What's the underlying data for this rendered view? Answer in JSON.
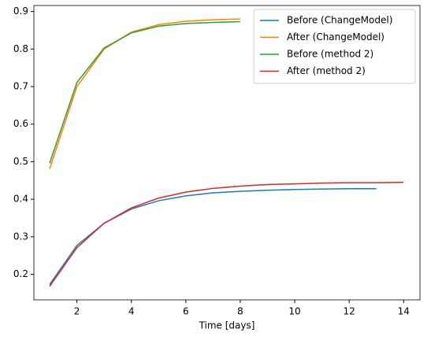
{
  "chart_data": {
    "type": "line",
    "x_label": "Time [days]",
    "xlim": [
      0.42,
      14.6
    ],
    "xticks": [
      2,
      4,
      6,
      8,
      10,
      12,
      14
    ],
    "ylim": [
      0.132,
      0.916
    ],
    "yticks": [
      0.2,
      0.3,
      0.4,
      0.5,
      0.6,
      0.7,
      0.8,
      0.9
    ],
    "legend": "upper right",
    "series": [
      {
        "name": "Before (ChangeModel)",
        "color": "#1f77b4",
        "x": [
          1,
          2,
          3,
          4,
          5,
          6,
          7,
          8,
          9,
          10,
          11,
          12,
          13
        ],
        "values": [
          0.173,
          0.277,
          0.336,
          0.374,
          0.396,
          0.409,
          0.417,
          0.421,
          0.424,
          0.426,
          0.427,
          0.428,
          0.428
        ]
      },
      {
        "name": "After (ChangeModel)",
        "color": "#ff7f0e",
        "x": [
          1,
          2,
          3,
          4,
          5,
          6,
          7,
          8
        ],
        "values": [
          0.481,
          0.7,
          0.8,
          0.845,
          0.865,
          0.874,
          0.878,
          0.88
        ]
      },
      {
        "name": "Before (method 2)",
        "color": "#2ca02c",
        "x": [
          1,
          2,
          3,
          4,
          5,
          6,
          7,
          8
        ],
        "values": [
          0.496,
          0.711,
          0.803,
          0.843,
          0.861,
          0.868,
          0.871,
          0.873
        ]
      },
      {
        "name": "After (method 2)",
        "color": "#d62728",
        "x": [
          1,
          2,
          3,
          4,
          5,
          6,
          7,
          8,
          9,
          10,
          11,
          12,
          13,
          14
        ],
        "values": [
          0.168,
          0.271,
          0.336,
          0.377,
          0.403,
          0.419,
          0.429,
          0.435,
          0.439,
          0.441,
          0.443,
          0.444,
          0.444,
          0.445
        ]
      }
    ]
  }
}
